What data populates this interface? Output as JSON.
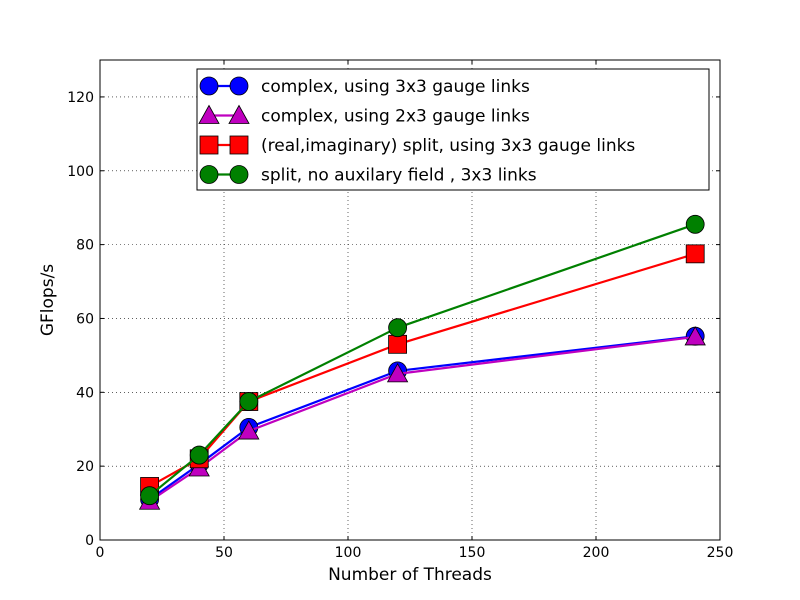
{
  "chart_data": {
    "type": "line",
    "title": "",
    "xlabel": "Number of Threads",
    "ylabel": "GFlops/s",
    "xlim": [
      0,
      250
    ],
    "ylim": [
      0,
      130
    ],
    "x_ticks": [
      0,
      50,
      100,
      150,
      200,
      250
    ],
    "y_ticks": [
      0,
      20,
      40,
      60,
      80,
      100,
      120
    ],
    "grid": true,
    "legend_position": "top-right",
    "x": [
      20,
      40,
      60,
      120,
      240
    ],
    "series": [
      {
        "name": "complex, using 3x3 gauge links",
        "values": [
          11,
          20.5,
          30.5,
          45.8,
          55.2
        ],
        "color": "#0000ff",
        "marker": "circle"
      },
      {
        "name": "complex, using 2x3 gauge links",
        "values": [
          10.5,
          19.5,
          29.5,
          45,
          55
        ],
        "color": "#bf00bf",
        "marker": "triangle"
      },
      {
        "name": "(real,imaginary) split, using 3x3 gauge links",
        "values": [
          14.5,
          22,
          37.5,
          53,
          77.5
        ],
        "color": "#ff0000",
        "marker": "square"
      },
      {
        "name": "split, no auxilary field , 3x3 links",
        "values": [
          12,
          23,
          37.5,
          57.5,
          85.5
        ],
        "color": "#008000",
        "marker": "circle"
      }
    ]
  }
}
